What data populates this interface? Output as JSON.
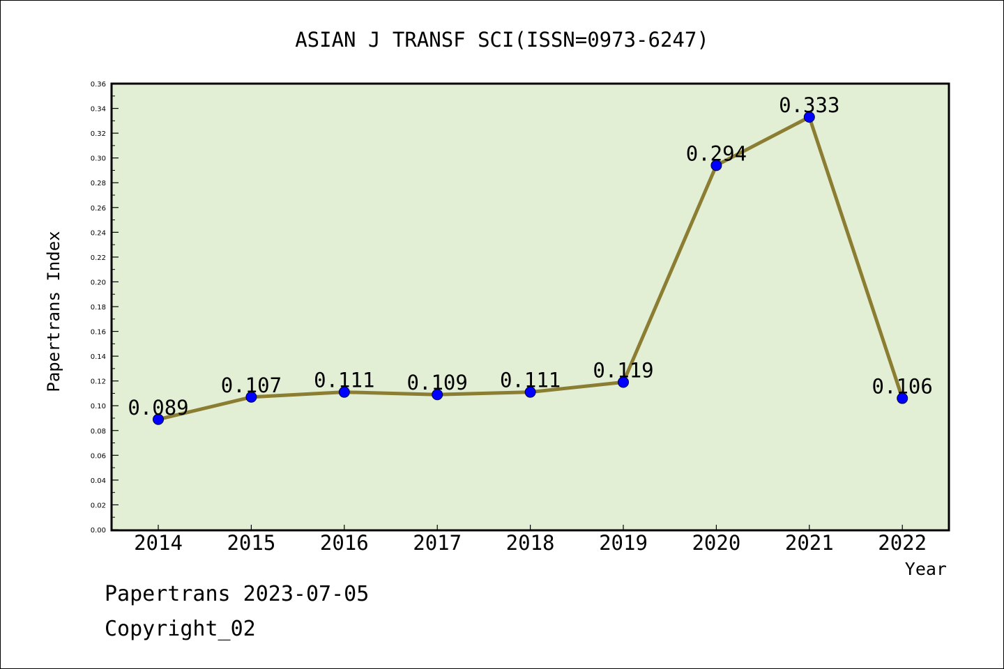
{
  "chart_data": {
    "type": "line",
    "title": "ASIAN J TRANSF SCI(ISSN=0973-6247)",
    "xlabel": "Year",
    "ylabel": "Papertrans Index",
    "categories": [
      "2014",
      "2015",
      "2016",
      "2017",
      "2018",
      "2019",
      "2020",
      "2021",
      "2022"
    ],
    "series": [
      {
        "values": [
          0.089,
          0.107,
          0.111,
          0.109,
          0.111,
          0.119,
          0.294,
          0.333,
          0.106
        ],
        "labels": [
          "0.089",
          "0.107",
          "0.111",
          "0.109",
          "0.111",
          "0.119",
          "0.294",
          "0.333",
          "0.106"
        ]
      }
    ],
    "ylim": [
      0,
      0.36
    ],
    "yticks": [
      "0.00",
      "0.02",
      "0.04",
      "0.06",
      "0.08",
      "0.10",
      "0.12",
      "0.14",
      "0.16",
      "0.18",
      "0.20",
      "0.22",
      "0.24",
      "0.26",
      "0.28",
      "0.30",
      "0.32",
      "0.34",
      "0.36"
    ],
    "grid": false,
    "legend": "none",
    "colors": {
      "plot_background": "#e2efd5",
      "line": "#8b7d32",
      "marker": "#0000ff"
    }
  },
  "footer": {
    "line1": "Papertrans 2023-07-05",
    "line2": "Copyright_02"
  }
}
